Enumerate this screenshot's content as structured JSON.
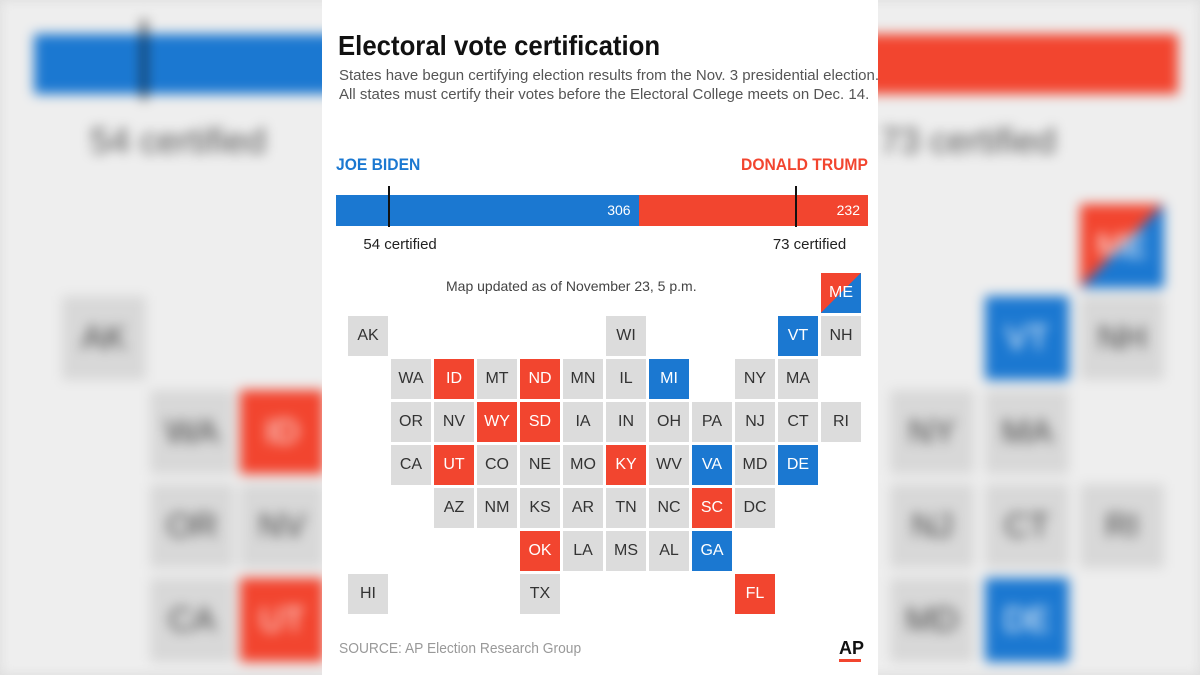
{
  "title": "Electoral vote certification",
  "subtitle": "States have begun certifying election results from the Nov. 3 presidential election. All states must certify their votes before the Electoral College meets on Dec. 14.",
  "colors": {
    "biden": "#1b78d1",
    "trump": "#f2452f",
    "neutral": "#dcdcdc"
  },
  "candidates": {
    "biden": {
      "name": "JOE BIDEN",
      "votes": "306",
      "certified_text": "54 certified"
    },
    "trump": {
      "name": "DONALD TRUMP",
      "votes": "232",
      "certified_text": "73 certified"
    }
  },
  "map_updated": "Map updated as of  November 23, 5 p.m.",
  "source": "SOURCE:  AP Election Research Group",
  "logo": "AP",
  "chart_data": [
    {
      "type": "bar",
      "categories": [
        "JOE BIDEN",
        "DONALD TRUMP"
      ],
      "values": [
        306,
        232
      ],
      "certified": [
        54,
        73
      ]
    },
    {
      "type": "heatmap",
      "status_legend": {
        "D": "certified, won by Biden",
        "R": "certified, won by Trump",
        "split": "certified, split",
        "none": "not yet certified"
      },
      "states": [
        {
          "abbr": "ME",
          "col": 11,
          "row": 0,
          "status": "split"
        },
        {
          "abbr": "AK",
          "col": 0,
          "row": 1,
          "status": "none"
        },
        {
          "abbr": "WI",
          "col": 6,
          "row": 1,
          "status": "none"
        },
        {
          "abbr": "VT",
          "col": 10,
          "row": 1,
          "status": "D"
        },
        {
          "abbr": "NH",
          "col": 11,
          "row": 1,
          "status": "none"
        },
        {
          "abbr": "WA",
          "col": 1,
          "row": 2,
          "status": "none"
        },
        {
          "abbr": "ID",
          "col": 2,
          "row": 2,
          "status": "R"
        },
        {
          "abbr": "MT",
          "col": 3,
          "row": 2,
          "status": "none"
        },
        {
          "abbr": "ND",
          "col": 4,
          "row": 2,
          "status": "R"
        },
        {
          "abbr": "MN",
          "col": 5,
          "row": 2,
          "status": "none"
        },
        {
          "abbr": "IL",
          "col": 6,
          "row": 2,
          "status": "none"
        },
        {
          "abbr": "MI",
          "col": 7,
          "row": 2,
          "status": "D"
        },
        {
          "abbr": "NY",
          "col": 9,
          "row": 2,
          "status": "none"
        },
        {
          "abbr": "MA",
          "col": 10,
          "row": 2,
          "status": "none"
        },
        {
          "abbr": "OR",
          "col": 1,
          "row": 3,
          "status": "none"
        },
        {
          "abbr": "NV",
          "col": 2,
          "row": 3,
          "status": "none"
        },
        {
          "abbr": "WY",
          "col": 3,
          "row": 3,
          "status": "R"
        },
        {
          "abbr": "SD",
          "col": 4,
          "row": 3,
          "status": "R"
        },
        {
          "abbr": "IA",
          "col": 5,
          "row": 3,
          "status": "none"
        },
        {
          "abbr": "IN",
          "col": 6,
          "row": 3,
          "status": "none"
        },
        {
          "abbr": "OH",
          "col": 7,
          "row": 3,
          "status": "none"
        },
        {
          "abbr": "PA",
          "col": 8,
          "row": 3,
          "status": "none"
        },
        {
          "abbr": "NJ",
          "col": 9,
          "row": 3,
          "status": "none"
        },
        {
          "abbr": "CT",
          "col": 10,
          "row": 3,
          "status": "none"
        },
        {
          "abbr": "RI",
          "col": 11,
          "row": 3,
          "status": "none"
        },
        {
          "abbr": "CA",
          "col": 1,
          "row": 4,
          "status": "none"
        },
        {
          "abbr": "UT",
          "col": 2,
          "row": 4,
          "status": "R"
        },
        {
          "abbr": "CO",
          "col": 3,
          "row": 4,
          "status": "none"
        },
        {
          "abbr": "NE",
          "col": 4,
          "row": 4,
          "status": "none"
        },
        {
          "abbr": "MO",
          "col": 5,
          "row": 4,
          "status": "none"
        },
        {
          "abbr": "KY",
          "col": 6,
          "row": 4,
          "status": "R"
        },
        {
          "abbr": "WV",
          "col": 7,
          "row": 4,
          "status": "none"
        },
        {
          "abbr": "VA",
          "col": 8,
          "row": 4,
          "status": "D"
        },
        {
          "abbr": "MD",
          "col": 9,
          "row": 4,
          "status": "none"
        },
        {
          "abbr": "DE",
          "col": 10,
          "row": 4,
          "status": "D"
        },
        {
          "abbr": "AZ",
          "col": 2,
          "row": 5,
          "status": "none"
        },
        {
          "abbr": "NM",
          "col": 3,
          "row": 5,
          "status": "none"
        },
        {
          "abbr": "KS",
          "col": 4,
          "row": 5,
          "status": "none"
        },
        {
          "abbr": "AR",
          "col": 5,
          "row": 5,
          "status": "none"
        },
        {
          "abbr": "TN",
          "col": 6,
          "row": 5,
          "status": "none"
        },
        {
          "abbr": "NC",
          "col": 7,
          "row": 5,
          "status": "none"
        },
        {
          "abbr": "SC",
          "col": 8,
          "row": 5,
          "status": "R"
        },
        {
          "abbr": "DC",
          "col": 9,
          "row": 5,
          "status": "none"
        },
        {
          "abbr": "OK",
          "col": 4,
          "row": 6,
          "status": "R"
        },
        {
          "abbr": "LA",
          "col": 5,
          "row": 6,
          "status": "none"
        },
        {
          "abbr": "MS",
          "col": 6,
          "row": 6,
          "status": "none"
        },
        {
          "abbr": "AL",
          "col": 7,
          "row": 6,
          "status": "none"
        },
        {
          "abbr": "GA",
          "col": 8,
          "row": 6,
          "status": "D"
        },
        {
          "abbr": "HI",
          "col": 0,
          "row": 7,
          "status": "none"
        },
        {
          "abbr": "TX",
          "col": 4,
          "row": 7,
          "status": "none"
        },
        {
          "abbr": "FL",
          "col": 9,
          "row": 7,
          "status": "R"
        }
      ]
    }
  ]
}
